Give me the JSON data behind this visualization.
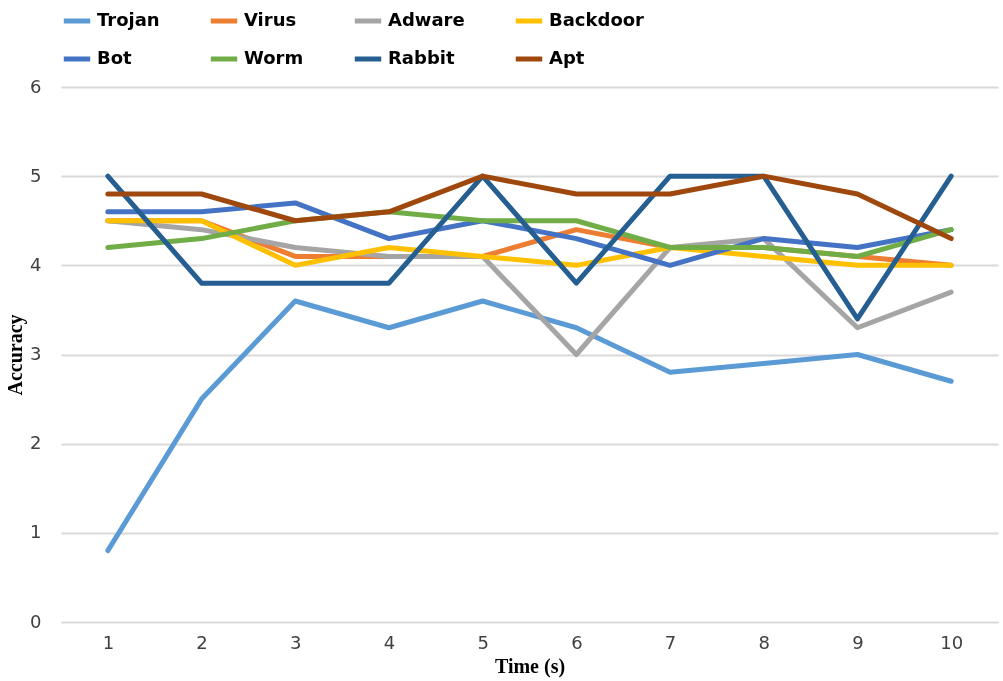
{
  "chart_data": {
    "type": "line",
    "xlabel": "Time (s)",
    "ylabel": "Accuracy",
    "categories": [
      "1",
      "2",
      "3",
      "4",
      "5",
      "6",
      "7",
      "8",
      "9",
      "10"
    ],
    "ylim": [
      0,
      6
    ],
    "yticks": [
      0,
      1,
      2,
      3,
      4,
      5,
      6
    ],
    "grid": "y",
    "legend": "top",
    "marker": "none",
    "line_style": "solid",
    "series": [
      {
        "name": "Trojan",
        "color": "#5b9bd5",
        "values": [
          0.8,
          2.5,
          3.6,
          3.3,
          3.6,
          3.3,
          2.8,
          2.9,
          3.0,
          2.7
        ]
      },
      {
        "name": "Virus",
        "color": "#ed7d31",
        "values": [
          4.5,
          4.5,
          4.1,
          4.1,
          4.1,
          4.4,
          4.2,
          4.2,
          4.1,
          4.0
        ]
      },
      {
        "name": "Adware",
        "color": "#a5a5a5",
        "values": [
          4.5,
          4.4,
          4.2,
          4.1,
          4.1,
          3.0,
          4.2,
          4.3,
          3.3,
          3.7
        ]
      },
      {
        "name": "Backdoor",
        "color": "#ffc000",
        "values": [
          4.5,
          4.5,
          4.0,
          4.2,
          4.1,
          4.0,
          4.2,
          4.1,
          4.0,
          4.0
        ]
      },
      {
        "name": "Bot",
        "color": "#4472c4",
        "values": [
          4.6,
          4.6,
          4.7,
          4.3,
          4.5,
          4.3,
          4.0,
          4.3,
          4.2,
          4.4
        ]
      },
      {
        "name": "Worm",
        "color": "#70ad47",
        "values": [
          4.2,
          4.3,
          4.5,
          4.6,
          4.5,
          4.5,
          4.2,
          4.2,
          4.1,
          4.4
        ]
      },
      {
        "name": "Rabbit",
        "color": "#255e91",
        "values": [
          5.0,
          3.8,
          3.8,
          3.8,
          5.0,
          3.8,
          5.0,
          5.0,
          3.4,
          5.0
        ]
      },
      {
        "name": "Apt",
        "color": "#9e480e",
        "values": [
          4.8,
          4.8,
          4.5,
          4.6,
          5.0,
          4.8,
          4.8,
          5.0,
          4.8,
          4.3
        ]
      }
    ]
  }
}
